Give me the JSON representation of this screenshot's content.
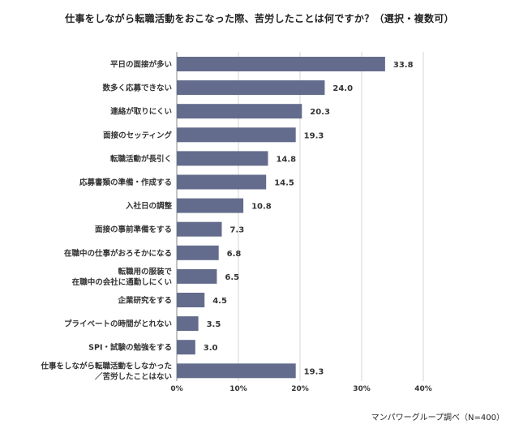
{
  "chart_data": {
    "type": "bar",
    "orientation": "horizontal",
    "title": "仕事をしながら転職活動をおこなった際、苦労したことは何ですか？（選択・複数可）",
    "categories": [
      "平日の面接が多い",
      "数多く応募できない",
      "連絡が取りにくい",
      "面接のセッティング",
      "転職活動が長引く",
      "応募書類の準備・作成する",
      "入社日の調整",
      "面接の事前準備をする",
      "在職中の仕事がおろそかになる",
      "転職用の服装で\n在職中の会社に通勤しにくい",
      "企業研究をする",
      "プライベートの時間がとれない",
      "SPI・試験の勉強をする",
      "仕事をしながら転職活動をしなかった\n／苦労したことはない"
    ],
    "values": [
      33.8,
      24.0,
      20.3,
      19.3,
      14.8,
      14.5,
      10.8,
      7.3,
      6.8,
      6.5,
      4.5,
      3.5,
      3.0,
      19.3
    ],
    "value_labels": [
      "33.8",
      "24.0",
      "20.3",
      "19.3",
      "14.8",
      "14.5",
      "10.8",
      "7.3",
      "6.8",
      "6.5",
      "4.5",
      "3.5",
      "3.0",
      "19.3"
    ],
    "xlim": [
      0,
      40
    ],
    "xticks": [
      0,
      10,
      20,
      30,
      40
    ],
    "xtick_labels": [
      "0%",
      "10%",
      "20%",
      "30%",
      "40%"
    ],
    "grid": true,
    "bar_color": "#636c8c",
    "source": "マンパワーグループ調べ（N=400）"
  }
}
